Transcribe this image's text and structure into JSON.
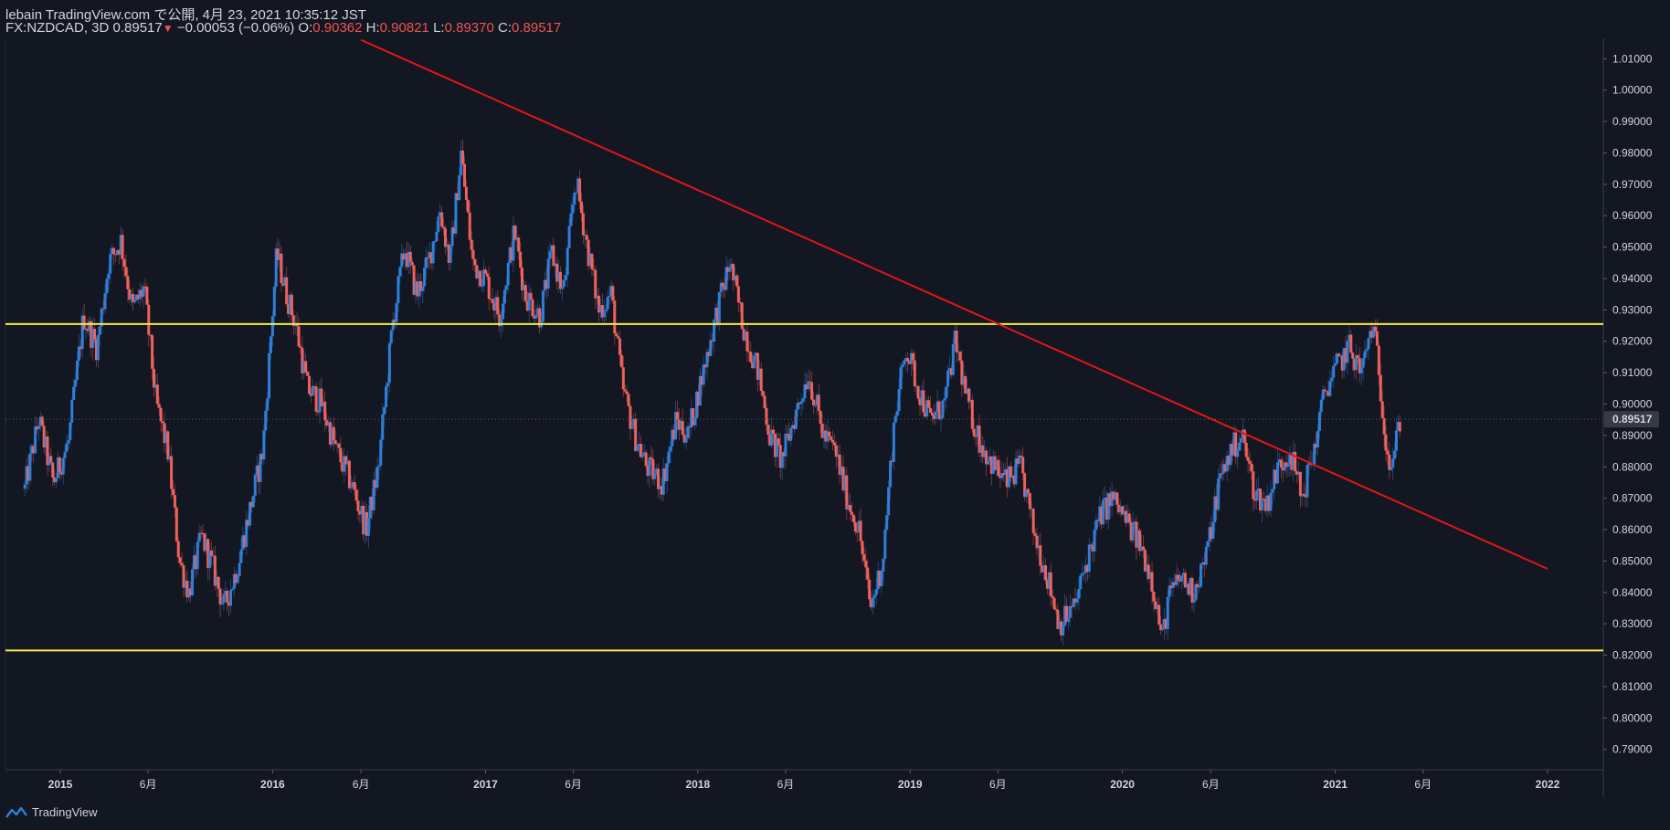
{
  "header": {
    "publisher": "lebain TradingView.com で公開, 4月 23, 2021 10:35:12 JST",
    "symbol": "FX:NZDCAD, 3D",
    "price": "0.89517",
    "change": "−0.00053 (−0.06%)",
    "o_label": "O:",
    "o_value": "0.90362",
    "h_label": "H:",
    "h_value": "0.90821",
    "l_label": "L:",
    "l_value": "0.89370",
    "c_label": "C:",
    "c_value": "0.89517"
  },
  "footer": {
    "brand": "TradingView"
  },
  "colors": {
    "background": "#131722",
    "up": "#2e7fd9",
    "down": "#f0615a",
    "trendline": "#e01616",
    "horizontal": "#f5e94a",
    "axis_text": "#d1d4dc",
    "price_tag_bg": "#363a45"
  },
  "chart_data": {
    "type": "candlestick",
    "x_ticks": [
      "2015",
      "6月",
      "2016",
      "6月",
      "2017",
      "6月",
      "2018",
      "6月",
      "2019",
      "6月",
      "2020",
      "6月",
      "2021",
      "6月",
      "2022"
    ],
    "x_tick_dates": [
      "2015-01-01",
      "2015-06-01",
      "2016-01-01",
      "2016-06-01",
      "2017-01-01",
      "2017-06-01",
      "2018-01-01",
      "2018-06-01",
      "2019-01-01",
      "2019-06-01",
      "2020-01-01",
      "2020-06-01",
      "2021-01-01",
      "2021-06-01",
      "2022-01-01"
    ],
    "y_ticks": [
      "1.01000",
      "1.00000",
      "0.99000",
      "0.98000",
      "0.97000",
      "0.96000",
      "0.95000",
      "0.94000",
      "0.93000",
      "0.92000",
      "0.91000",
      "0.90000",
      "0.89000",
      "0.88000",
      "0.87000",
      "0.86000",
      "0.85000",
      "0.84000",
      "0.83000",
      "0.82000",
      "0.81000",
      "0.80000",
      "0.79000"
    ],
    "y_range": [
      0.7835,
      1.0165
    ],
    "last_price": "0.89517",
    "path": [
      [
        "2014-11-01",
        0.873
      ],
      [
        "2014-11-25",
        0.895
      ],
      [
        "2014-12-20",
        0.875
      ],
      [
        "2015-01-15",
        0.888
      ],
      [
        "2015-02-10",
        0.928
      ],
      [
        "2015-03-05",
        0.918
      ],
      [
        "2015-03-25",
        0.945
      ],
      [
        "2015-04-15",
        0.952
      ],
      [
        "2015-05-05",
        0.93
      ],
      [
        "2015-05-25",
        0.937
      ],
      [
        "2015-06-15",
        0.9
      ],
      [
        "2015-07-05",
        0.885
      ],
      [
        "2015-07-25",
        0.85
      ],
      [
        "2015-08-10",
        0.84
      ],
      [
        "2015-09-01",
        0.858
      ],
      [
        "2015-09-20",
        0.848
      ],
      [
        "2015-10-10",
        0.835
      ],
      [
        "2015-11-01",
        0.848
      ],
      [
        "2015-11-25",
        0.868
      ],
      [
        "2015-12-15",
        0.885
      ],
      [
        "2016-01-08",
        0.948
      ],
      [
        "2016-01-25",
        0.935
      ],
      [
        "2016-02-10",
        0.925
      ],
      [
        "2016-03-01",
        0.905
      ],
      [
        "2016-03-25",
        0.9
      ],
      [
        "2016-04-20",
        0.885
      ],
      [
        "2016-05-15",
        0.875
      ],
      [
        "2016-06-10",
        0.86
      ],
      [
        "2016-07-01",
        0.88
      ],
      [
        "2016-07-25",
        0.925
      ],
      [
        "2016-08-15",
        0.95
      ],
      [
        "2016-09-05",
        0.935
      ],
      [
        "2016-09-25",
        0.945
      ],
      [
        "2016-10-15",
        0.962
      ],
      [
        "2016-11-01",
        0.945
      ],
      [
        "2016-11-20",
        0.98
      ],
      [
        "2016-12-10",
        0.945
      ],
      [
        "2017-01-01",
        0.94
      ],
      [
        "2017-01-25",
        0.928
      ],
      [
        "2017-02-20",
        0.955
      ],
      [
        "2017-03-10",
        0.935
      ],
      [
        "2017-04-05",
        0.928
      ],
      [
        "2017-04-25",
        0.948
      ],
      [
        "2017-05-15",
        0.935
      ],
      [
        "2017-06-05",
        0.972
      ],
      [
        "2017-06-25",
        0.95
      ],
      [
        "2017-07-15",
        0.93
      ],
      [
        "2017-08-05",
        0.935
      ],
      [
        "2017-08-25",
        0.905
      ],
      [
        "2017-09-15",
        0.89
      ],
      [
        "2017-10-05",
        0.88
      ],
      [
        "2017-11-01",
        0.875
      ],
      [
        "2017-11-25",
        0.895
      ],
      [
        "2017-12-15",
        0.89
      ],
      [
        "2018-01-10",
        0.91
      ],
      [
        "2018-02-01",
        0.928
      ],
      [
        "2018-02-25",
        0.945
      ],
      [
        "2018-03-20",
        0.925
      ],
      [
        "2018-04-15",
        0.91
      ],
      [
        "2018-05-05",
        0.89
      ],
      [
        "2018-05-25",
        0.882
      ],
      [
        "2018-06-15",
        0.895
      ],
      [
        "2018-07-10",
        0.91
      ],
      [
        "2018-08-05",
        0.89
      ],
      [
        "2018-08-25",
        0.885
      ],
      [
        "2018-09-15",
        0.87
      ],
      [
        "2018-10-05",
        0.86
      ],
      [
        "2018-10-25",
        0.835
      ],
      [
        "2018-11-15",
        0.85
      ],
      [
        "2018-12-05",
        0.895
      ],
      [
        "2018-12-25",
        0.918
      ],
      [
        "2019-01-15",
        0.905
      ],
      [
        "2019-02-05",
        0.895
      ],
      [
        "2019-03-01",
        0.9
      ],
      [
        "2019-03-20",
        0.92
      ],
      [
        "2019-04-10",
        0.9
      ],
      [
        "2019-05-01",
        0.888
      ],
      [
        "2019-05-25",
        0.88
      ],
      [
        "2019-06-15",
        0.875
      ],
      [
        "2019-07-10",
        0.88
      ],
      [
        "2019-08-01",
        0.86
      ],
      [
        "2019-08-25",
        0.845
      ],
      [
        "2019-09-15",
        0.83
      ],
      [
        "2019-10-10",
        0.835
      ],
      [
        "2019-11-01",
        0.85
      ],
      [
        "2019-11-25",
        0.865
      ],
      [
        "2019-12-15",
        0.87
      ],
      [
        "2020-01-10",
        0.862
      ],
      [
        "2020-02-01",
        0.855
      ],
      [
        "2020-02-20",
        0.845
      ],
      [
        "2020-03-10",
        0.825
      ],
      [
        "2020-03-20",
        0.838
      ],
      [
        "2020-04-10",
        0.845
      ],
      [
        "2020-05-01",
        0.84
      ],
      [
        "2020-05-25",
        0.852
      ],
      [
        "2020-06-15",
        0.875
      ],
      [
        "2020-07-05",
        0.885
      ],
      [
        "2020-07-25",
        0.89
      ],
      [
        "2020-08-15",
        0.872
      ],
      [
        "2020-09-05",
        0.868
      ],
      [
        "2020-09-25",
        0.88
      ],
      [
        "2020-10-15",
        0.885
      ],
      [
        "2020-11-05",
        0.87
      ],
      [
        "2020-11-25",
        0.885
      ],
      [
        "2020-12-15",
        0.905
      ],
      [
        "2021-01-05",
        0.912
      ],
      [
        "2021-01-25",
        0.918
      ],
      [
        "2021-02-15",
        0.91
      ],
      [
        "2021-03-05",
        0.925
      ],
      [
        "2021-03-15",
        0.915
      ],
      [
        "2021-03-25",
        0.895
      ],
      [
        "2021-04-05",
        0.88
      ],
      [
        "2021-04-13",
        0.885
      ],
      [
        "2021-04-22",
        0.895
      ]
    ],
    "trendline": {
      "points": [
        [
          "2016-06-01",
          1.016
        ],
        [
          "2022-01-01",
          0.8475
        ]
      ],
      "color": "#e01616"
    },
    "horizontal_lines": [
      {
        "y": 0.9255,
        "color": "#f5e94a"
      },
      {
        "y": 0.8215,
        "color": "#f5e94a"
      }
    ]
  }
}
